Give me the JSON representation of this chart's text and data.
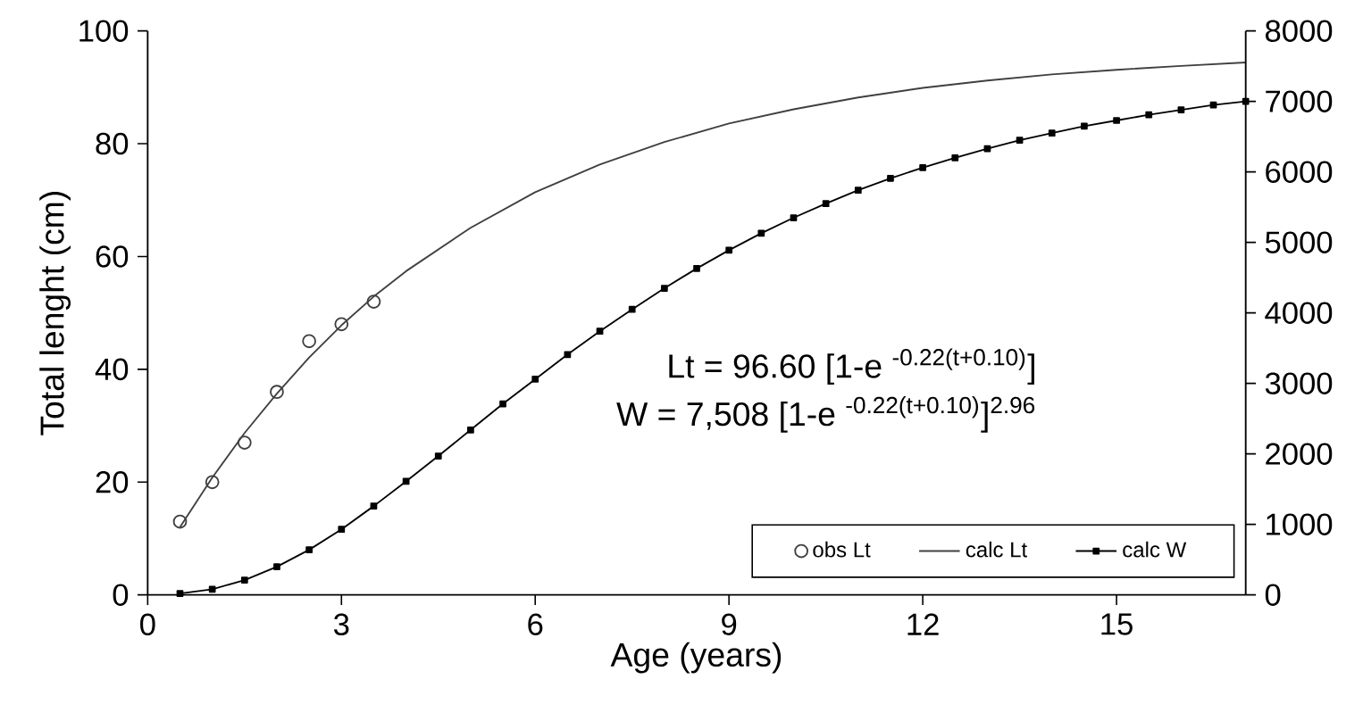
{
  "chart_data": {
    "type": "line",
    "xlabel": "Age (years)",
    "ylabel": "Total lenght (cm)",
    "xlim": [
      0,
      17
    ],
    "xticks": [
      0,
      3,
      6,
      9,
      12,
      15
    ],
    "ylim": [
      0,
      100
    ],
    "yticks": [
      0,
      20,
      40,
      60,
      80,
      100
    ],
    "y2lim": [
      0,
      8000
    ],
    "y2ticks": [
      0,
      1000,
      2000,
      3000,
      4000,
      5000,
      6000,
      7000,
      8000
    ],
    "legend": "bottom right",
    "grid": false,
    "annotations": [
      "Lt = 96.60 [1-e $^{-0.22(t+0.10)}$]",
      "W = 7,508 [1-e $^{-0.22(t+0.10)}$]$^{2.96}$"
    ],
    "series": [
      {
        "name": "obs Lt",
        "type": "scatter",
        "marker": "circle",
        "color": "#404040",
        "x": [
          0.5,
          1,
          1.5,
          2,
          2.5,
          3,
          3.5
        ],
        "values": [
          13,
          20,
          27,
          36,
          45,
          48,
          52
        ]
      },
      {
        "name": "calc Lt",
        "marker": "none",
        "line_style": "solid",
        "color": "#404040",
        "x": [
          0.5,
          1,
          1.5,
          2,
          2.5,
          3,
          3.5,
          4,
          5,
          6,
          7,
          8,
          9,
          10,
          11,
          12,
          13,
          14,
          15,
          16,
          17
        ],
        "values": [
          12.0,
          20.8,
          28.7,
          35.7,
          42.1,
          47.8,
          52.9,
          57.4,
          65.1,
          71.4,
          76.3,
          80.3,
          83.6,
          86.1,
          88.2,
          89.9,
          91.2,
          92.3,
          93.1,
          93.8,
          94.4
        ]
      },
      {
        "name": "calc W",
        "axis": "y2",
        "marker": "square",
        "line_style": "solid",
        "color": "#000000",
        "x": [
          0.5,
          1,
          1.5,
          2,
          2.5,
          3,
          3.5,
          4,
          4.5,
          5,
          5.5,
          6,
          6.5,
          7,
          7.5,
          8,
          8.5,
          9,
          9.5,
          10,
          10.5,
          11,
          11.5,
          12,
          12.5,
          13,
          13.5,
          14,
          14.5,
          15,
          15.5,
          16,
          16.5,
          17
        ],
        "values": [
          20,
          80,
          210,
          400,
          640,
          930,
          1260,
          1610,
          1970,
          2340,
          2710,
          3060,
          3410,
          3740,
          4050,
          4350,
          4630,
          4890,
          5130,
          5350,
          5550,
          5740,
          5910,
          6060,
          6200,
          6330,
          6450,
          6550,
          6650,
          6730,
          6810,
          6880,
          6950,
          7000
        ]
      }
    ]
  }
}
